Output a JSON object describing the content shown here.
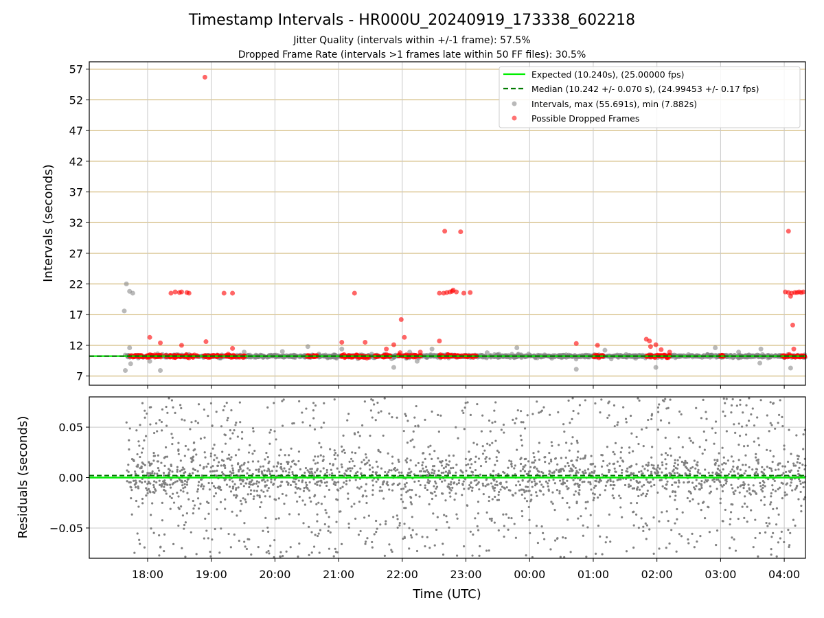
{
  "chart_data": {
    "title": "Timestamp Intervals - HR000U_20240919_173338_602218",
    "subtitles": [
      "Jitter Quality (intervals within +/-1 frame): 57.5%",
      "Dropped Frame Rate (intervals >1 frames late within 50 FF files): 30.5%"
    ],
    "xlabel": "Time (UTC)",
    "x_tick_labels": [
      "18:00",
      "19:00",
      "20:00",
      "21:00",
      "22:00",
      "23:00",
      "00:00",
      "01:00",
      "02:00",
      "03:00",
      "04:00"
    ],
    "x_range": [
      "2024-09-19T17:05:00Z",
      "2024-09-20T04:20:00Z"
    ],
    "panels": [
      {
        "type": "scatter",
        "ylabel": "Intervals (seconds)",
        "ylim": [
          5.5,
          58.2
        ],
        "y_ticks": [
          7,
          12,
          17,
          22,
          27,
          32,
          37,
          42,
          47,
          52,
          57
        ],
        "grid": "horizontal lines (tan) and vertical lines (gray)",
        "legend_position": "top-right",
        "legend": [
          "Expected (10.240s), (25.00000 fps)",
          "Median (10.242 +/- 0.070 s), (24.99453 +/- 0.17 fps)",
          "Intervals, max (55.691s), min (7.882s)",
          "Possible Dropped Frames"
        ],
        "expected_interval": 10.24,
        "median_interval": 10.242,
        "series": [
          {
            "name": "Intervals, max (55.691s), min (7.882s)",
            "color": "#808080",
            "baseline": 10.24,
            "outliers": [
              {
                "x": "2024-09-19T17:38:00Z",
                "y": 17.6
              },
              {
                "x": "2024-09-19T17:39:00Z",
                "y": 7.9
              },
              {
                "x": "2024-09-19T17:40:00Z",
                "y": 22.0
              },
              {
                "x": "2024-09-19T17:43:00Z",
                "y": 20.8
              },
              {
                "x": "2024-09-19T17:46:00Z",
                "y": 20.5
              },
              {
                "x": "2024-09-19T17:43:00Z",
                "y": 11.6
              },
              {
                "x": "2024-09-19T17:44:00Z",
                "y": 9.0
              },
              {
                "x": "2024-09-19T18:12:00Z",
                "y": 7.9
              },
              {
                "x": "2024-09-19T18:02:00Z",
                "y": 9.4
              },
              {
                "x": "2024-09-19T19:31:00Z",
                "y": 10.9
              },
              {
                "x": "2024-09-19T20:07:00Z",
                "y": 11.0
              },
              {
                "x": "2024-09-19T20:31:00Z",
                "y": 11.8
              },
              {
                "x": "2024-09-19T21:03:00Z",
                "y": 11.4
              },
              {
                "x": "2024-09-19T21:50:00Z",
                "y": 9.8
              },
              {
                "x": "2024-09-19T21:52:00Z",
                "y": 8.4
              },
              {
                "x": "2024-09-19T22:07:00Z",
                "y": 10.9
              },
              {
                "x": "2024-09-19T22:14:00Z",
                "y": 9.4
              },
              {
                "x": "2024-09-19T22:28:00Z",
                "y": 11.4
              },
              {
                "x": "2024-09-19T23:20:00Z",
                "y": 10.8
              },
              {
                "x": "2024-09-19T23:48:00Z",
                "y": 11.6
              },
              {
                "x": "2024-09-20T00:21:00Z",
                "y": 9.9
              },
              {
                "x": "2024-09-20T00:44:00Z",
                "y": 8.1
              },
              {
                "x": "2024-09-20T01:11:00Z",
                "y": 11.2
              },
              {
                "x": "2024-09-20T01:40:00Z",
                "y": 9.9
              },
              {
                "x": "2024-09-20T01:59:00Z",
                "y": 8.4
              },
              {
                "x": "2024-09-20T02:55:00Z",
                "y": 11.6
              },
              {
                "x": "2024-09-20T03:17:00Z",
                "y": 10.9
              },
              {
                "x": "2024-09-20T03:38:00Z",
                "y": 11.4
              },
              {
                "x": "2024-09-20T03:37:00Z",
                "y": 9.1
              },
              {
                "x": "2024-09-20T04:06:00Z",
                "y": 8.3
              }
            ]
          },
          {
            "name": "Possible Dropped Frames",
            "color": "#ff0000",
            "outliers": [
              {
                "x": "2024-09-19T18:02:00Z",
                "y": 13.3
              },
              {
                "x": "2024-09-19T18:12:00Z",
                "y": 12.4
              },
              {
                "x": "2024-09-19T18:22:00Z",
                "y": 20.5
              },
              {
                "x": "2024-09-19T18:26:00Z",
                "y": 20.7
              },
              {
                "x": "2024-09-19T18:30:00Z",
                "y": 20.6
              },
              {
                "x": "2024-09-19T18:32:00Z",
                "y": 20.7
              },
              {
                "x": "2024-09-19T18:37:00Z",
                "y": 20.6
              },
              {
                "x": "2024-09-19T18:39:00Z",
                "y": 20.5
              },
              {
                "x": "2024-09-19T18:32:00Z",
                "y": 12.0
              },
              {
                "x": "2024-09-19T18:54:00Z",
                "y": 55.691
              },
              {
                "x": "2024-09-19T18:55:00Z",
                "y": 12.6
              },
              {
                "x": "2024-09-19T19:12:00Z",
                "y": 20.5
              },
              {
                "x": "2024-09-19T19:20:00Z",
                "y": 11.5
              },
              {
                "x": "2024-09-19T19:20:00Z",
                "y": 20.5
              },
              {
                "x": "2024-09-19T21:03:00Z",
                "y": 12.5
              },
              {
                "x": "2024-09-19T21:15:00Z",
                "y": 20.5
              },
              {
                "x": "2024-09-19T21:25:00Z",
                "y": 12.5
              },
              {
                "x": "2024-09-19T21:52:00Z",
                "y": 12.1
              },
              {
                "x": "2024-09-19T21:45:00Z",
                "y": 11.4
              },
              {
                "x": "2024-09-19T21:58:00Z",
                "y": 10.8
              },
              {
                "x": "2024-09-19T21:59:00Z",
                "y": 16.2
              },
              {
                "x": "2024-09-19T22:02:00Z",
                "y": 13.3
              },
              {
                "x": "2024-09-19T22:17:00Z",
                "y": 10.9
              },
              {
                "x": "2024-09-19T22:35:00Z",
                "y": 12.7
              },
              {
                "x": "2024-09-19T22:35:00Z",
                "y": 20.5
              },
              {
                "x": "2024-09-19T22:39:00Z",
                "y": 20.5
              },
              {
                "x": "2024-09-19T22:42:00Z",
                "y": 20.6
              },
              {
                "x": "2024-09-19T22:45:00Z",
                "y": 20.7
              },
              {
                "x": "2024-09-19T22:47:00Z",
                "y": 20.8
              },
              {
                "x": "2024-09-19T22:48:00Z",
                "y": 21.0
              },
              {
                "x": "2024-09-19T22:51:00Z",
                "y": 20.7
              },
              {
                "x": "2024-09-19T22:40:00Z",
                "y": 30.6
              },
              {
                "x": "2024-09-19T22:55:00Z",
                "y": 30.5
              },
              {
                "x": "2024-09-19T22:58:00Z",
                "y": 20.5
              },
              {
                "x": "2024-09-19T23:04:00Z",
                "y": 20.6
              },
              {
                "x": "2024-09-20T00:44:00Z",
                "y": 12.3
              },
              {
                "x": "2024-09-20T01:04:00Z",
                "y": 12.0
              },
              {
                "x": "2024-09-20T01:50:00Z",
                "y": 13.0
              },
              {
                "x": "2024-09-20T01:53:00Z",
                "y": 12.7
              },
              {
                "x": "2024-09-20T01:54:00Z",
                "y": 11.8
              },
              {
                "x": "2024-09-20T01:59:00Z",
                "y": 12.1
              },
              {
                "x": "2024-09-20T02:04:00Z",
                "y": 11.3
              },
              {
                "x": "2024-09-20T02:12:00Z",
                "y": 10.9
              },
              {
                "x": "2024-09-20T04:01:00Z",
                "y": 20.7
              },
              {
                "x": "2024-09-20T04:04:00Z",
                "y": 30.6
              },
              {
                "x": "2024-09-20T04:04:00Z",
                "y": 20.6
              },
              {
                "x": "2024-09-20T04:06:00Z",
                "y": 20.0
              },
              {
                "x": "2024-09-20T04:07:00Z",
                "y": 20.5
              },
              {
                "x": "2024-09-20T04:08:00Z",
                "y": 15.3
              },
              {
                "x": "2024-09-20T04:09:00Z",
                "y": 11.4
              },
              {
                "x": "2024-09-20T04:10:00Z",
                "y": 20.6
              },
              {
                "x": "2024-09-20T04:12:00Z",
                "y": 20.6
              },
              {
                "x": "2024-09-20T04:14:00Z",
                "y": 20.7
              },
              {
                "x": "2024-09-20T04:16:00Z",
                "y": 20.6
              },
              {
                "x": "2024-09-20T04:18:00Z",
                "y": 20.7
              }
            ],
            "baseline_clusters": [
              [
                "2024-09-19T17:42:00Z",
                "2024-09-19T18:18:00Z"
              ],
              [
                "2024-09-19T18:20:00Z",
                "2024-09-19T18:48:00Z"
              ],
              [
                "2024-09-19T18:52:00Z",
                "2024-09-19T19:10:00Z"
              ],
              [
                "2024-09-19T19:12:00Z",
                "2024-09-19T19:32:00Z"
              ],
              [
                "2024-09-19T20:30:00Z",
                "2024-09-19T20:40:00Z"
              ],
              [
                "2024-09-19T21:02:00Z",
                "2024-09-19T21:30:00Z"
              ],
              [
                "2024-09-19T21:34:00Z",
                "2024-09-19T21:50:00Z"
              ],
              [
                "2024-09-19T21:56:00Z",
                "2024-09-19T22:18:00Z"
              ],
              [
                "2024-09-19T22:35:00Z",
                "2024-09-19T23:10:00Z"
              ],
              [
                "2024-09-20T01:00:00Z",
                "2024-09-20T01:10:00Z"
              ],
              [
                "2024-09-20T01:50:00Z",
                "2024-09-20T02:12:00Z"
              ],
              [
                "2024-09-20T02:58:00Z",
                "2024-09-20T03:03:00Z"
              ],
              [
                "2024-09-20T03:58:00Z",
                "2024-09-20T04:20:00Z"
              ]
            ]
          }
        ]
      },
      {
        "type": "scatter",
        "ylabel": "Residuals (seconds)",
        "ylim": [
          -0.08,
          0.08
        ],
        "y_ticks": [
          0.05,
          0.0,
          -0.05
        ],
        "y_tick_labels": [
          "0.05",
          "0.00",
          "−0.05"
        ],
        "grid": "on",
        "series": [
          {
            "name": "Residuals",
            "color": "#808080",
            "distribution": "scatter of residuals, mostly within -0.08 to 0.08",
            "x_start": "2024-09-19T17:40:00Z",
            "x_end": "2024-09-20T04:20:00Z"
          }
        ],
        "expected_line": 0.0,
        "median_line": 0.002
      }
    ],
    "colors": {
      "expected": "#00ee00",
      "median": "#007a00",
      "intervals": "#808080",
      "dropped": "#ff0000",
      "hgrid_top": "#d2b97a",
      "grid": "#c8c8c8"
    }
  }
}
